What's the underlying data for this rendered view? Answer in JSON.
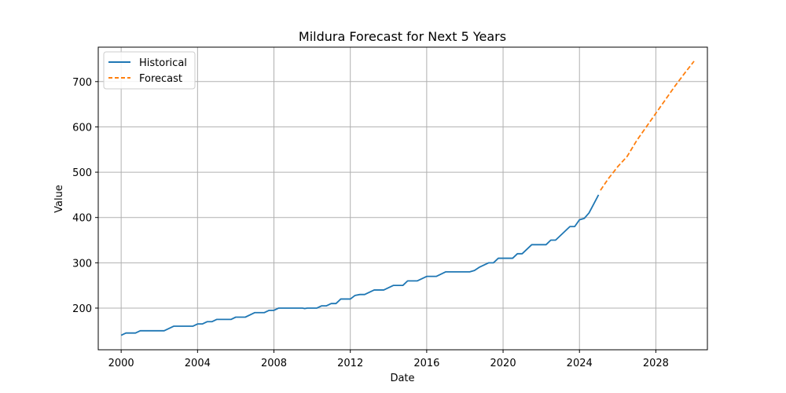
{
  "chart_data": {
    "type": "line",
    "title": "Mildura Forecast for Next 5 Years",
    "xlabel": "Date",
    "ylabel": "Value",
    "xlim": [
      1998.8,
      2030.7
    ],
    "ylim": [
      108,
      776
    ],
    "x_ticks": [
      2000,
      2004,
      2008,
      2012,
      2016,
      2020,
      2024,
      2028
    ],
    "y_ticks": [
      200,
      300,
      400,
      500,
      600,
      700
    ],
    "grid": true,
    "legend_position": "top-left",
    "series": [
      {
        "name": "Historical",
        "color": "#1f77b4",
        "style": "solid",
        "points": [
          [
            2000.0,
            140
          ],
          [
            2000.25,
            145
          ],
          [
            2000.75,
            145
          ],
          [
            2001.0,
            150
          ],
          [
            2002.25,
            150
          ],
          [
            2002.75,
            160
          ],
          [
            2003.75,
            160
          ],
          [
            2004.0,
            165
          ],
          [
            2004.25,
            165
          ],
          [
            2004.5,
            170
          ],
          [
            2004.75,
            170
          ],
          [
            2005.0,
            175
          ],
          [
            2005.75,
            175
          ],
          [
            2006.0,
            180
          ],
          [
            2006.5,
            180
          ],
          [
            2007.0,
            190
          ],
          [
            2007.5,
            190
          ],
          [
            2007.75,
            195
          ],
          [
            2008.0,
            195
          ],
          [
            2008.25,
            200
          ],
          [
            2009.5,
            200
          ],
          [
            2009.6,
            199
          ],
          [
            2009.75,
            200
          ],
          [
            2010.25,
            200
          ],
          [
            2010.5,
            205
          ],
          [
            2010.75,
            205
          ],
          [
            2011.0,
            210
          ],
          [
            2011.25,
            210
          ],
          [
            2011.5,
            220
          ],
          [
            2012.0,
            220
          ],
          [
            2012.25,
            228
          ],
          [
            2012.5,
            230
          ],
          [
            2012.75,
            230
          ],
          [
            2013.25,
            240
          ],
          [
            2013.75,
            240
          ],
          [
            2014.25,
            250
          ],
          [
            2014.75,
            250
          ],
          [
            2015.0,
            260
          ],
          [
            2015.5,
            260
          ],
          [
            2016.0,
            270
          ],
          [
            2016.5,
            270
          ],
          [
            2017.0,
            280
          ],
          [
            2018.25,
            280
          ],
          [
            2018.5,
            283
          ],
          [
            2018.75,
            290
          ],
          [
            2019.0,
            295
          ],
          [
            2019.25,
            300
          ],
          [
            2019.5,
            300
          ],
          [
            2019.75,
            310
          ],
          [
            2020.5,
            310
          ],
          [
            2020.75,
            320
          ],
          [
            2021.0,
            320
          ],
          [
            2021.5,
            340
          ],
          [
            2022.25,
            340
          ],
          [
            2022.5,
            350
          ],
          [
            2022.75,
            350
          ],
          [
            2023.25,
            370
          ],
          [
            2023.5,
            380
          ],
          [
            2023.75,
            380
          ],
          [
            2024.0,
            395
          ],
          [
            2024.25,
            398
          ],
          [
            2024.5,
            410
          ],
          [
            2024.75,
            430
          ],
          [
            2025.0,
            450
          ]
        ]
      },
      {
        "name": "Forecast",
        "color": "#ff7f0e",
        "style": "dashed",
        "points": [
          [
            2025.1,
            460
          ],
          [
            2025.5,
            485
          ],
          [
            2026.0,
            512
          ],
          [
            2026.5,
            535
          ],
          [
            2027.0,
            570
          ],
          [
            2027.5,
            600
          ],
          [
            2028.0,
            630
          ],
          [
            2028.5,
            660
          ],
          [
            2029.0,
            690
          ],
          [
            2029.5,
            718
          ],
          [
            2030.0,
            745
          ]
        ]
      }
    ]
  }
}
